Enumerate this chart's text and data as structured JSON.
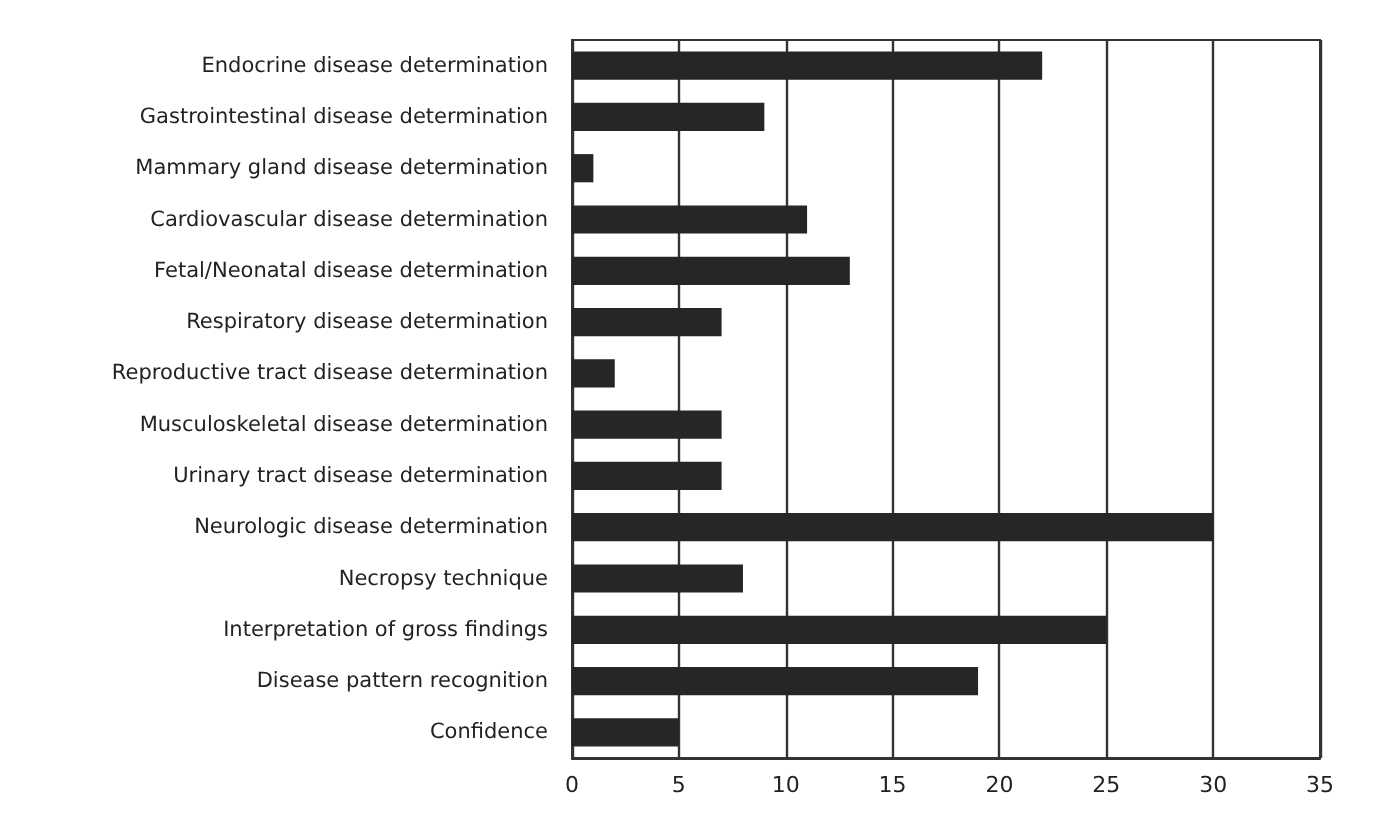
{
  "chart_data": {
    "type": "bar",
    "orientation": "horizontal",
    "categories": [
      "Endocrine disease determination",
      "Gastrointestinal disease determination",
      "Mammary gland disease determination",
      "Cardiovascular disease determination",
      "Fetal/Neonatal disease determination",
      "Respiratory disease determination",
      "Reproductive tract disease determination",
      "Musculoskeletal disease determination",
      "Urinary tract disease determination",
      "Neurologic disease determination",
      "Necropsy technique",
      "Interpretation of gross findings",
      "Disease pattern recognition",
      "Confidence"
    ],
    "values": [
      22,
      9,
      1,
      11,
      13,
      7,
      2,
      7,
      7,
      30,
      8,
      25,
      19,
      5
    ],
    "color": "#262626",
    "xlim": [
      0,
      35
    ],
    "xticks": [
      0,
      5,
      10,
      15,
      20,
      25,
      30,
      35
    ],
    "grid": "x"
  }
}
